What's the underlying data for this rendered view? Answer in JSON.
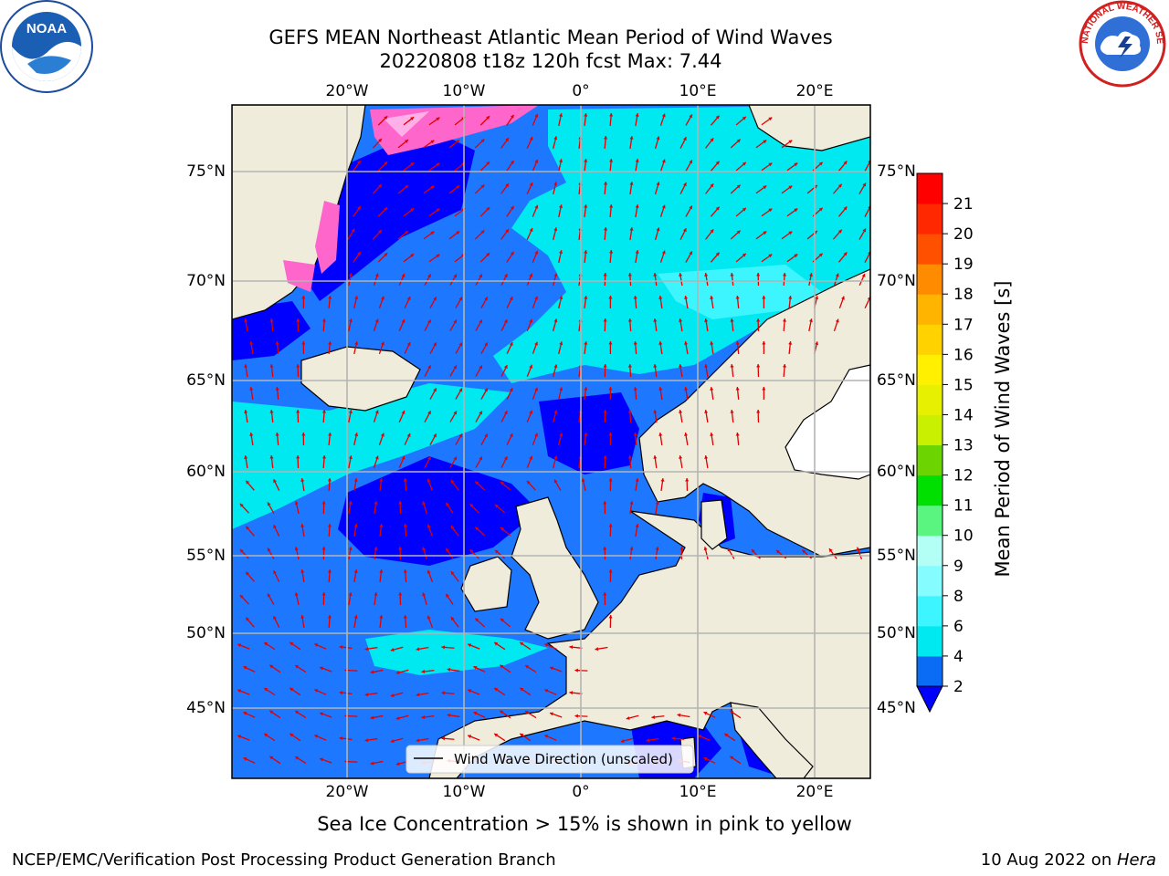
{
  "header": {
    "title_line1": "GEFS MEAN Northeast Atlantic Mean Period of Wind Waves",
    "title_line2": "20220808 t18z 120h fcst   Max: 7.44"
  },
  "logos": {
    "left": "NOAA",
    "right": "NATIONAL WEATHER SERVICE"
  },
  "axes": {
    "lon_ticks": [
      "20°W",
      "10°W",
      "0°",
      "10°E",
      "20°E"
    ],
    "lat_ticks": [
      "75°N",
      "70°N",
      "65°N",
      "60°N",
      "55°N",
      "50°N",
      "45°N"
    ],
    "lon_values": [
      -20,
      -10,
      0,
      10,
      20
    ],
    "lat_values": [
      75,
      70,
      65,
      60,
      55,
      50,
      45
    ]
  },
  "legend": {
    "entry": "Wind Wave Direction (unscaled)",
    "location": "lower-center"
  },
  "colorbar": {
    "label": "Mean Period of Wind Waves [s]",
    "tick_labels": [
      "2",
      "4",
      "6",
      "8",
      "9",
      "10",
      "11",
      "12",
      "13",
      "14",
      "15",
      "16",
      "17",
      "18",
      "19",
      "20",
      "21"
    ],
    "colors": [
      "#0a6cf5",
      "#00e8f0",
      "#3cf5ff",
      "#85fcff",
      "#b4fff5",
      "#5af580",
      "#00e000",
      "#6cd400",
      "#c8f000",
      "#e6f000",
      "#fff000",
      "#ffd200",
      "#ffb400",
      "#ff8c00",
      "#ff5000",
      "#ff2800",
      "#ff0000"
    ],
    "under_color": "#0000ff",
    "extend": "min"
  },
  "map_colors": {
    "land": "#efecdc",
    "ice": "#ff66cc",
    "wave_dark": "#0000ff",
    "wave_mid": "#1e78ff",
    "wave_light": "#00e8f0",
    "arrow": "#e00000",
    "grid": "#b4b4b4"
  },
  "caption": "Sea Ice Concentration > 15% is shown in pink to yellow",
  "footer": {
    "left": "NCEP/EMC/Verification Post Processing Product Generation Branch",
    "right_date": "10 Aug 2022 on ",
    "right_host": "Hera"
  }
}
